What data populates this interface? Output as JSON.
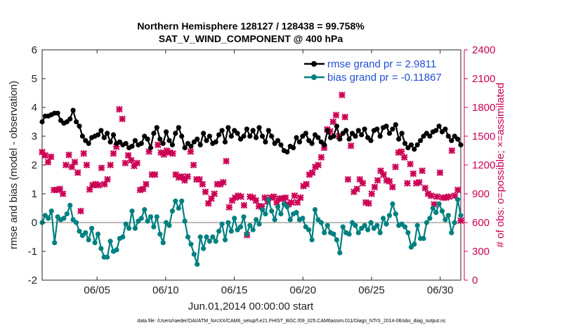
{
  "chart_data": {
    "type": "line",
    "title": "Northern Hemisphere 128127 / 128438 = 99.758%",
    "subtitle": "SAT_V_WIND_COMPONENT @ 400 hPa",
    "xlabel": "Jun.01,2014 00:00:00 start",
    "ylabel": "rmse and bias (model - observation)",
    "ylabel_right": "# of obs: o=possible; ×=assimilated",
    "xlim": [
      1,
      31.5
    ],
    "ylim": [
      -2,
      6
    ],
    "ylim_right": [
      0,
      2400
    ],
    "x_ticks": [
      {
        "value": 5,
        "label": "06/05"
      },
      {
        "value": 10,
        "label": "06/10"
      },
      {
        "value": 15,
        "label": "06/15"
      },
      {
        "value": 20,
        "label": "06/20"
      },
      {
        "value": 25,
        "label": "06/25"
      },
      {
        "value": 30,
        "label": "06/30"
      }
    ],
    "y_ticks": [
      "-2",
      "-1",
      "0",
      "1",
      "2",
      "3",
      "4",
      "5",
      "6"
    ],
    "y_ticks_right": [
      "0",
      "300",
      "600",
      "900",
      "1200",
      "1500",
      "1800",
      "2100",
      "2400"
    ],
    "colors": {
      "rmse": "#000000",
      "bias": "#008080",
      "obs": "#cc0055",
      "zero": "#bbbbbb",
      "legend_text": "#1f4fd6"
    },
    "series": [
      {
        "name": "rmse grand pr = 2.9811",
        "values": [
          3.5,
          3.7,
          3.7,
          3.75,
          3.8,
          3.8,
          3.55,
          3.45,
          3.5,
          3.6,
          3.9,
          3.5,
          3.35,
          3.0,
          2.85,
          2.75,
          2.95,
          3.0,
          3.05,
          3.2,
          2.95,
          3.1,
          2.8,
          3.05,
          2.75,
          2.8,
          2.7,
          2.75,
          2.6,
          2.65,
          2.85,
          2.7,
          2.75,
          3.0,
          2.9,
          2.6,
          3.1,
          3.3,
          2.9,
          2.75,
          3.15,
          2.85,
          2.7,
          3.1,
          3.3,
          3.0,
          2.6,
          2.75,
          2.65,
          2.8,
          2.9,
          2.7,
          3.1,
          2.85,
          3.0,
          2.75,
          2.8,
          3.05,
          3.2,
          2.8,
          3.3,
          3.0,
          3.2,
          3.1,
          2.9,
          3.0,
          3.25,
          3.0,
          3.2,
          2.95,
          3.3,
          3.0,
          2.8,
          3.2,
          3.0,
          2.75,
          2.85,
          2.7,
          2.5,
          2.45,
          2.65,
          2.6,
          2.95,
          2.8,
          3.0,
          3.1,
          2.85,
          2.75,
          3.05,
          2.95,
          2.8,
          2.7,
          3.2,
          2.95,
          3.0,
          3.35,
          2.9,
          3.1,
          3.2,
          2.9,
          3.1,
          3.0,
          3.2,
          3.05,
          3.25,
          2.95,
          2.85,
          3.2,
          3.25,
          3.0,
          3.3,
          3.35,
          3.1,
          3.25,
          3.4,
          2.9,
          3.1,
          2.75,
          2.6,
          2.7,
          2.55,
          2.7,
          2.85,
          3.0,
          3.1,
          3.0,
          3.15,
          3.2,
          3.35,
          3.15,
          3.25,
          3.0,
          2.85,
          3.0,
          2.9,
          2.7
        ]
      },
      {
        "name": "bias grand pr = -0.11867",
        "values": [
          0.0,
          0.25,
          0.15,
          0.4,
          -0.7,
          0.2,
          0.1,
          0.15,
          0.3,
          0.6,
          0.1,
          0.0,
          -0.3,
          -0.45,
          -0.35,
          -0.6,
          -0.2,
          -0.7,
          -0.4,
          -0.9,
          -1.2,
          -1.2,
          -0.65,
          -1.0,
          -0.95,
          -0.55,
          -0.5,
          -0.05,
          -0.2,
          0.4,
          -0.2,
          0.05,
          0.15,
          0.45,
          0.05,
          0.2,
          -0.15,
          0.2,
          -0.4,
          -0.7,
          0.0,
          -0.1,
          0.4,
          0.75,
          0.5,
          0.75,
          0.05,
          -0.5,
          -0.75,
          -1.1,
          -1.45,
          -0.5,
          -0.9,
          -0.5,
          -0.65,
          -0.5,
          -0.65,
          -0.3,
          -0.05,
          -0.6,
          0.0,
          -0.3,
          0.15,
          -0.25,
          -0.15,
          0.2,
          -0.4,
          -0.1,
          -0.25,
          0.1,
          -0.05,
          0.45,
          0.3,
          0.8,
          0.4,
          0.1,
          0.55,
          0.3,
          0.65,
          0.55,
          0.1,
          0.3,
          0.35,
          0.1,
          0.15,
          -0.15,
          -0.25,
          -0.6,
          0.45,
          0.1,
          0.0,
          -0.35,
          -0.1,
          -0.35,
          -0.4,
          -0.6,
          -1.05,
          -0.15,
          -0.35,
          -0.4,
          0.0,
          -0.1,
          -0.35,
          -0.2,
          -0.1,
          -0.25,
          0.0,
          -0.2,
          -0.1,
          -0.35,
          0.15,
          -0.05,
          0.25,
          0.65,
          0.3,
          -0.1,
          -0.05,
          -0.15,
          -0.35,
          -0.85,
          -0.75,
          -0.1,
          -0.55,
          -0.55,
          0.0,
          0.15,
          0.5,
          0.35,
          0.65,
          0.4,
          0.1,
          0.25,
          -0.35,
          0.0,
          0.8,
          0.25
        ]
      }
    ],
    "obs_assimilated": [
      1335,
      1300,
      1230,
      1285,
      940,
      940,
      950,
      900,
      1200,
      1305,
      1180,
      1230,
      1120,
      720,
      1320,
      1200,
      945,
      990,
      1000,
      990,
      1170,
      1000,
      1050,
      1200,
      1320,
      1390,
      1780,
      1680,
      1220,
      1300,
      1250,
      1190,
      1220,
      940,
      950,
      1000,
      1340,
      1100,
      1100,
      1410,
      1330,
      1310,
      1350,
      1330,
      1320,
      1100,
      1070,
      1080,
      1040,
      1080,
      1340,
      1200,
      1050,
      1050,
      1000,
      920,
      800,
      850,
      900,
      1000,
      1000,
      1020,
      1240,
      760,
      830,
      860,
      880,
      870,
      780,
      470,
      870,
      860,
      830,
      770,
      770,
      860,
      820,
      860,
      870,
      810,
      850,
      850,
      860,
      790,
      810,
      880,
      810,
      860,
      980,
      1000,
      1100,
      1120,
      1180,
      1200,
      1280,
      1380,
      1570,
      1550,
      1650,
      1720,
      1500,
      1930,
      1700,
      1050,
      1400,
      920,
      950,
      1050,
      1010,
      810,
      800,
      900,
      970,
      1040,
      1140,
      1100,
      1040,
      1030,
      970,
      1180,
      1330,
      1340,
      1280,
      1010,
      1210,
      1110,
      1010,
      1020,
      1140,
      960,
      900,
      880,
      790,
      870,
      1120,
      860,
      860,
      870,
      1350,
      880,
      940,
      620
    ]
  },
  "footer": "data file: /Users/raeder/DAI/ATM_forcXX/CAM6_setup/f.e21.FHIST_BGC.f09_025.CAM6assim.011/Diags_NTrS_2014-06/obs_diag_output.nc"
}
